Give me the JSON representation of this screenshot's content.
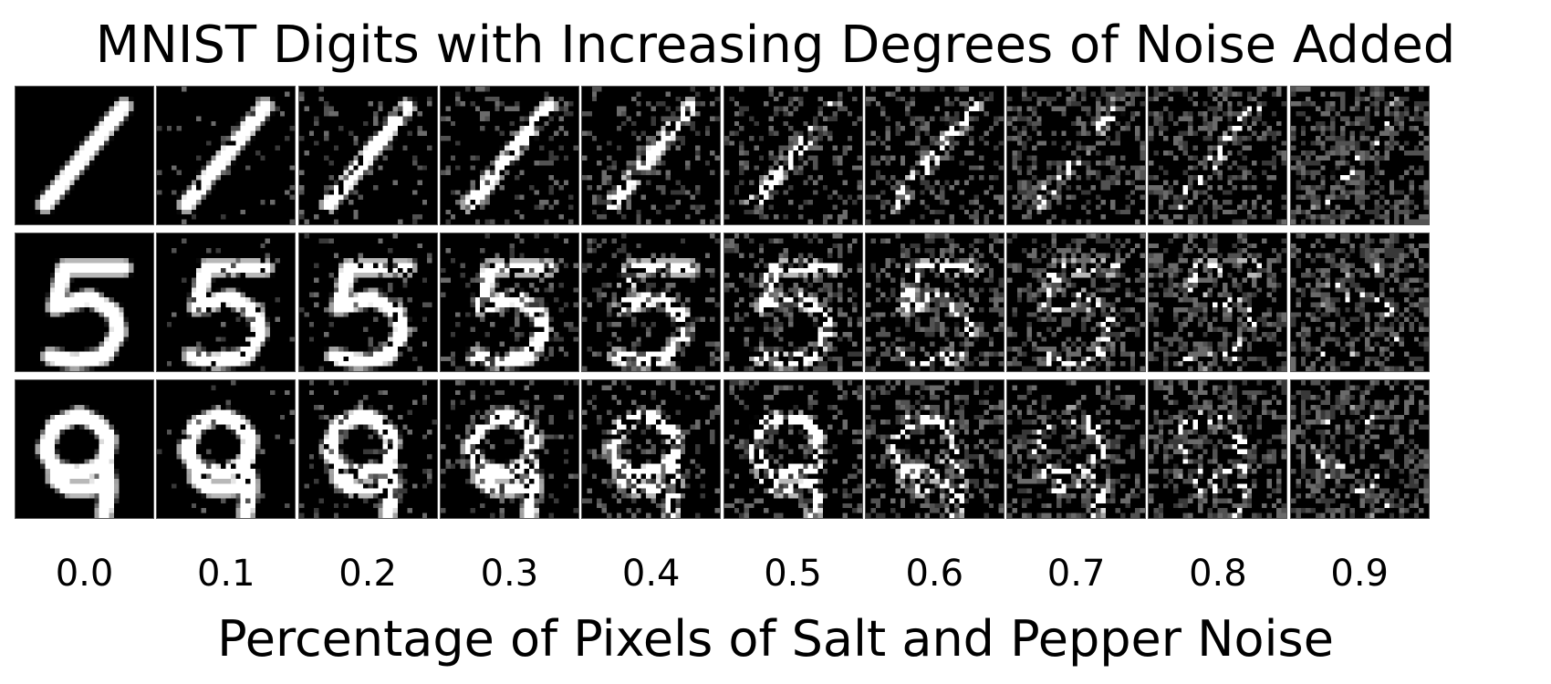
{
  "figure": {
    "title": "MNIST Digits with Increasing Degrees of Noise Added",
    "x_label": "Percentage of Pixels of Salt and Pepper Noise"
  },
  "columns": [
    {
      "label": "0.0",
      "noise": 0.0
    },
    {
      "label": "0.1",
      "noise": 0.1
    },
    {
      "label": "0.2",
      "noise": 0.2
    },
    {
      "label": "0.3",
      "noise": 0.3
    },
    {
      "label": "0.4",
      "noise": 0.4
    },
    {
      "label": "0.5",
      "noise": 0.5
    },
    {
      "label": "0.6",
      "noise": 0.6
    },
    {
      "label": "0.7",
      "noise": 0.7
    },
    {
      "label": "0.8",
      "noise": 0.8
    },
    {
      "label": "0.9",
      "noise": 0.9
    }
  ],
  "rows": [
    {
      "digit": "1"
    },
    {
      "digit": "5"
    },
    {
      "digit": "9"
    }
  ],
  "colors": {
    "background": "#000000",
    "stroke": "#ffffff",
    "cell_border": "#555555"
  }
}
